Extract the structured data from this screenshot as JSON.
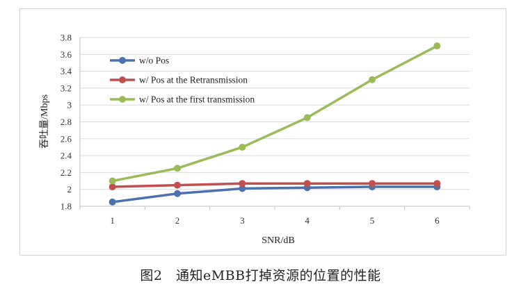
{
  "chart_data": {
    "type": "line",
    "x": [
      1,
      2,
      3,
      4,
      5,
      6
    ],
    "series": [
      {
        "name": "w/o Pos",
        "color": "#4a72b0",
        "values": [
          1.85,
          1.95,
          2.01,
          2.02,
          2.03,
          2.03
        ]
      },
      {
        "name": "w/ Pos at the Retransmission",
        "color": "#c0504d",
        "values": [
          2.03,
          2.05,
          2.07,
          2.07,
          2.07,
          2.07
        ]
      },
      {
        "name": "w/ Pos at the first transmission",
        "color": "#9bbb59",
        "values": [
          2.1,
          2.25,
          2.5,
          2.85,
          3.3,
          3.7
        ]
      }
    ],
    "xlabel": "SNR/dB",
    "ylabel": "吞吐量/Mbps",
    "ylim": [
      1.8,
      3.8
    ],
    "yticks": [
      "1.8",
      "2",
      "2.2",
      "2.4",
      "2.6",
      "2.8",
      "3",
      "3.2",
      "3.4",
      "3.6",
      "3.8"
    ],
    "xticks": [
      "1",
      "2",
      "3",
      "4",
      "5",
      "6"
    ],
    "grid": "horizontal",
    "legend_position": "top-left"
  },
  "caption": "图2　通知eMBB打掉资源的位置的性能"
}
